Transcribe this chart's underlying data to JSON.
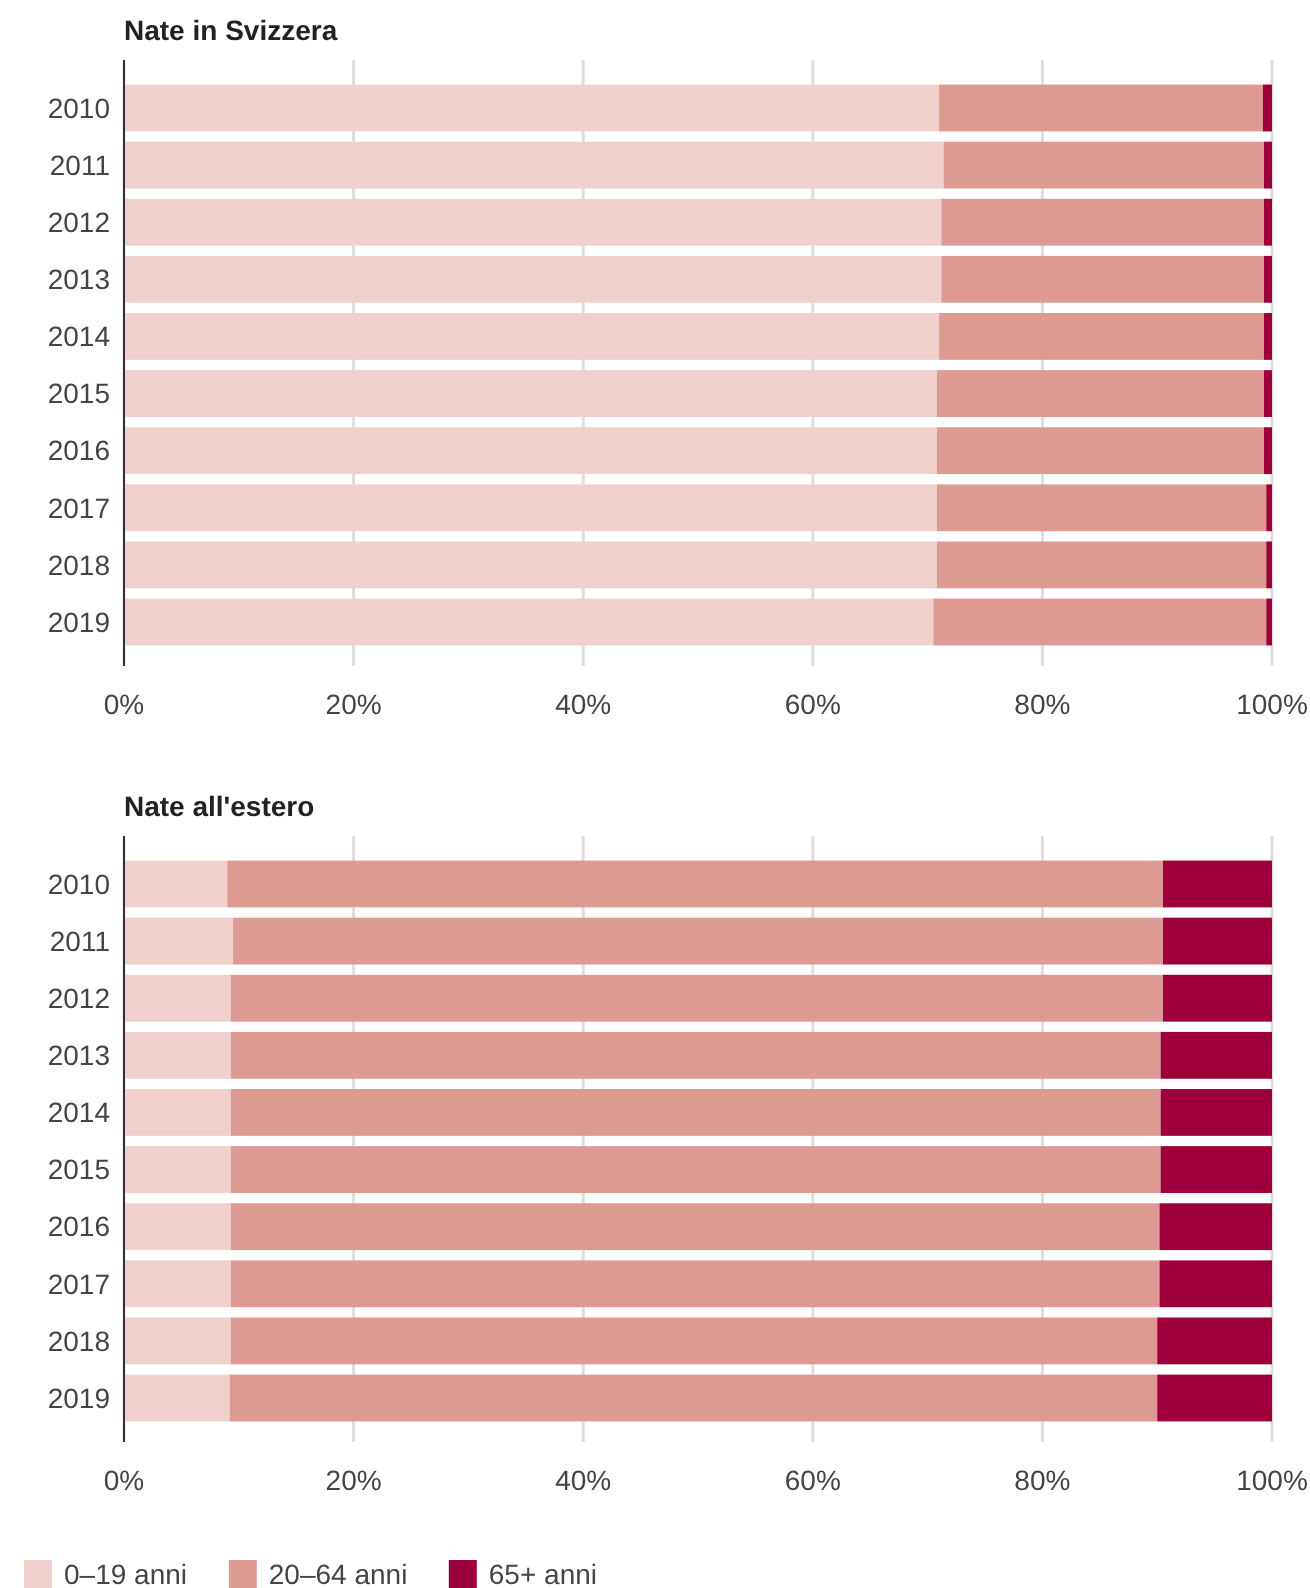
{
  "chart_data": [
    {
      "type": "bar",
      "title": "Nate in Svizzera",
      "orientation": "horizontal",
      "stacked": true,
      "categories": [
        "2010",
        "2011",
        "2012",
        "2013",
        "2014",
        "2015",
        "2016",
        "2017",
        "2018",
        "2019"
      ],
      "series": [
        {
          "name": "0–19 anni",
          "color": "#efd0cc",
          "values": [
            71.0,
            71.4,
            71.2,
            71.2,
            71.0,
            70.8,
            70.8,
            70.8,
            70.8,
            70.5
          ]
        },
        {
          "name": "20–64 anni",
          "color": "#dc9a92",
          "values": [
            28.2,
            27.9,
            28.1,
            28.1,
            28.3,
            28.5,
            28.5,
            28.7,
            28.7,
            29.0
          ]
        },
        {
          "name": "65+ anni",
          "color": "#9e003c",
          "values": [
            0.8,
            0.7,
            0.7,
            0.7,
            0.7,
            0.7,
            0.7,
            0.5,
            0.5,
            0.5
          ]
        }
      ],
      "xlim": [
        0,
        100
      ],
      "xticks": [
        {
          "value": 0,
          "label": "0%"
        },
        {
          "value": 20,
          "label": "20%"
        },
        {
          "value": 40,
          "label": "40%"
        },
        {
          "value": 60,
          "label": "60%"
        },
        {
          "value": 80,
          "label": "80%"
        },
        {
          "value": 100,
          "label": "100%"
        }
      ],
      "grid": "x",
      "legend": "bottom"
    },
    {
      "type": "bar",
      "title": "Nate all'estero",
      "orientation": "horizontal",
      "stacked": true,
      "categories": [
        "2010",
        "2011",
        "2012",
        "2013",
        "2014",
        "2015",
        "2016",
        "2017",
        "2018",
        "2019"
      ],
      "series": [
        {
          "color": "#efd0cc",
          "values": [
            9.0,
            9.5,
            9.3,
            9.3,
            9.3,
            9.3,
            9.3,
            9.3,
            9.3,
            9.2
          ]
        },
        {
          "color": "#dc9a92",
          "values": [
            81.5,
            81.0,
            81.2,
            81.0,
            81.0,
            81.0,
            80.9,
            80.9,
            80.7,
            80.8
          ]
        },
        {
          "color": "#9e003c",
          "values": [
            9.5,
            9.5,
            9.5,
            9.7,
            9.7,
            9.7,
            9.8,
            9.8,
            10.0,
            10.0
          ]
        }
      ],
      "xlim": [
        0,
        100
      ],
      "xticks": [
        {
          "value": 0,
          "label": "0%"
        },
        {
          "value": 20,
          "label": "20%"
        },
        {
          "value": 40,
          "label": "40%"
        },
        {
          "value": 60,
          "label": "60%"
        },
        {
          "value": 80,
          "label": "80%"
        },
        {
          "value": 100,
          "label": "100%"
        }
      ],
      "grid": "x"
    }
  ]
}
